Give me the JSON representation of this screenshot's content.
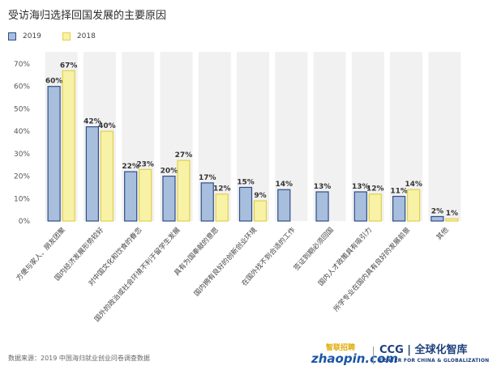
{
  "title": "受访海归选择回国发展的主要原因",
  "source": "数据来源：2019 中国海归就业创业问卷调查数据",
  "logos": {
    "zhaopin_cn": "智联招聘",
    "zhaopin_en": "zhaopin.com",
    "ccg_main": "CCG | 全球化智库",
    "ccg_sub": "CENTER FOR CHINA & GLOBALIZATION"
  },
  "colors": {
    "series_2019_fill": "#a7bedd",
    "series_2019_stroke": "#2f4e8a",
    "series_2018_fill": "#f8f2a6",
    "series_2018_stroke": "#e2cf4a",
    "band": "#f1f1f1",
    "axis_text": "#555555"
  },
  "chart_data": {
    "type": "bar",
    "categories": [
      "方便与家人、朋友团聚",
      "国内经济发展形势较好",
      "对中国文化和饮食的眷恋",
      "国外的政治或社会环境不利于留学生发展",
      "具有为国奉献的意愿",
      "国内拥有良好的创新创业环境",
      "在国外找不到合适的工作",
      "签证到期必须回国",
      "国内人才政策具有吸引力",
      "所学专业在国内具有良好的发展前景",
      "其他"
    ],
    "series": [
      {
        "name": "2019",
        "values": [
          60,
          42,
          22,
          20,
          17,
          15,
          14,
          13,
          13,
          11,
          2
        ]
      },
      {
        "name": "2018",
        "values": [
          67,
          40,
          23,
          27,
          12,
          9,
          null,
          null,
          12,
          14,
          1
        ]
      }
    ],
    "ylim": [
      0,
      70
    ],
    "yticks": [
      "0%",
      "10%",
      "20%",
      "30%",
      "40%",
      "50%",
      "60%",
      "70%"
    ],
    "value_suffix": "%",
    "grid": false,
    "legend_position": "top-left"
  }
}
